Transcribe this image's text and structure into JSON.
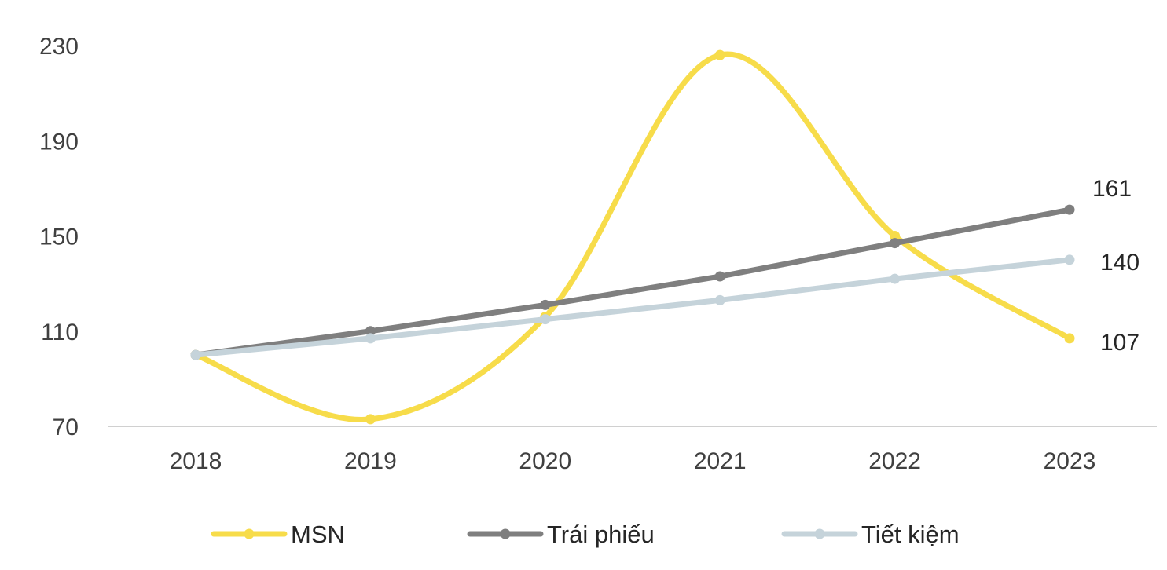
{
  "chart_data": {
    "type": "line",
    "title": "",
    "xlabel": "",
    "ylabel": "",
    "categories": [
      "2018",
      "2019",
      "2020",
      "2021",
      "2022",
      "2023"
    ],
    "y_ticks": [
      "70",
      "110",
      "150",
      "190",
      "230"
    ],
    "ylim": [
      70,
      230
    ],
    "grid": false,
    "legend_position": "bottom",
    "series": [
      {
        "name": "MSN",
        "values": [
          100,
          73,
          116,
          226,
          150,
          107
        ],
        "color": "#f7dc4a",
        "smooth": true,
        "end_label": "107"
      },
      {
        "name": "Trái phiếu",
        "values": [
          100,
          110,
          121,
          133,
          147,
          161
        ],
        "color": "#7f7f7f",
        "smooth": false,
        "end_label": "161"
      },
      {
        "name": "Tiết kiệm",
        "values": [
          100,
          107,
          115,
          123,
          132,
          140
        ],
        "color": "#c5d3da",
        "smooth": false,
        "end_label": "140"
      }
    ]
  }
}
